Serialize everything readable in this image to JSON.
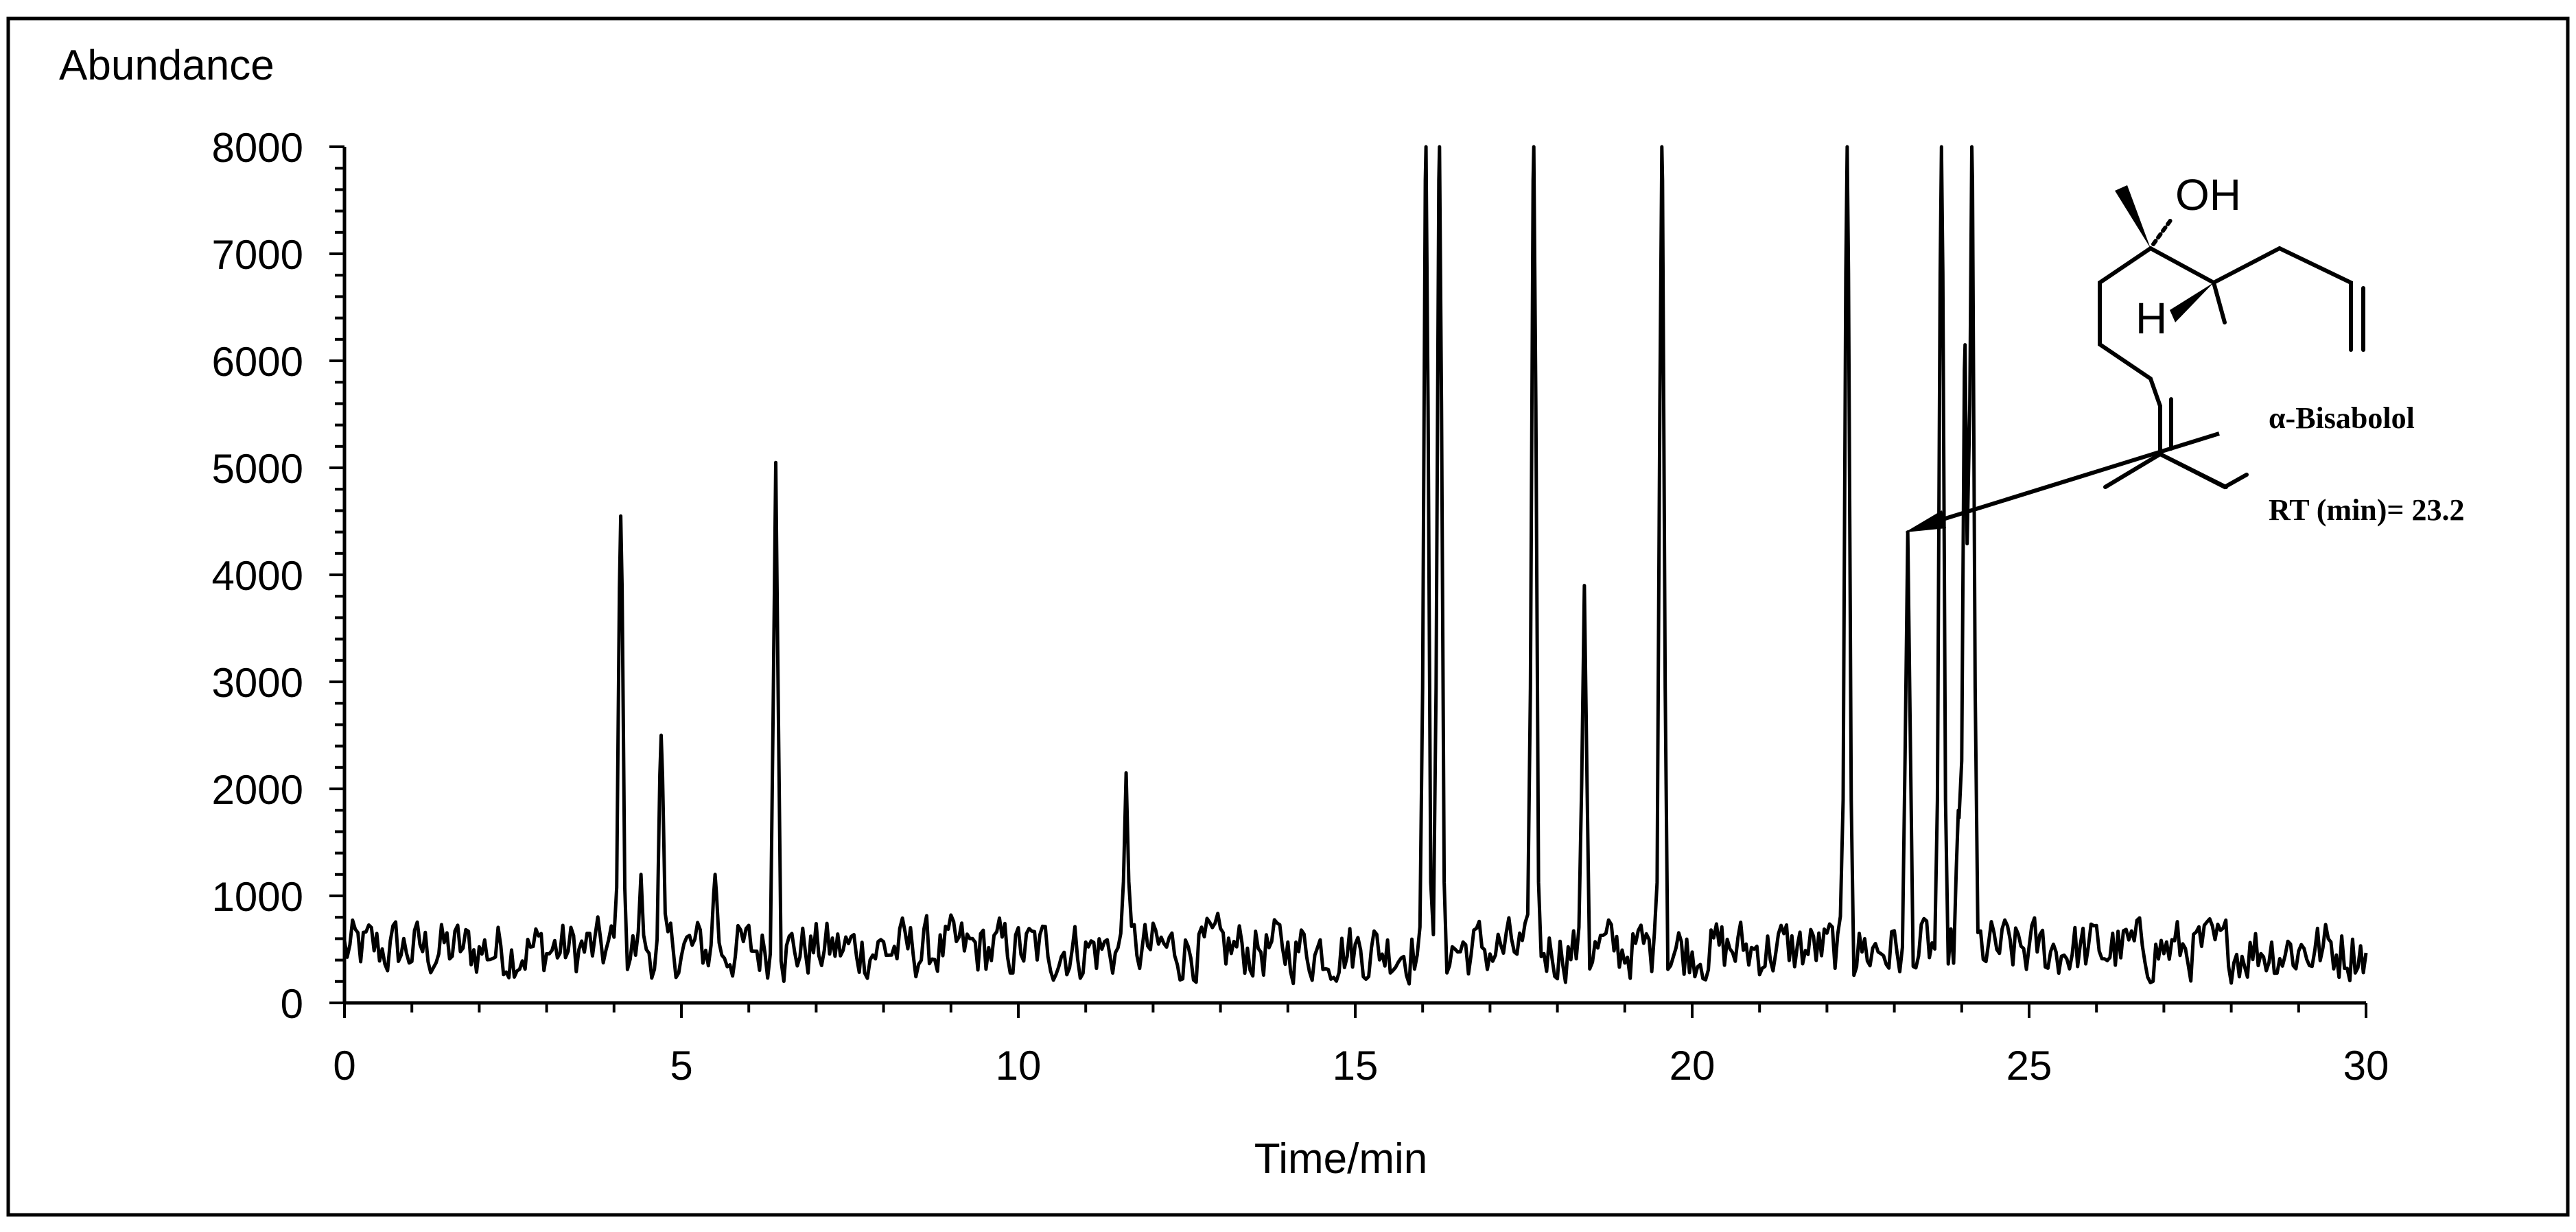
{
  "chart_data": {
    "type": "line",
    "ylabel": "Abundance",
    "xlabel": "Time/min",
    "xlim": [
      0,
      30
    ],
    "ylim": [
      0,
      8000
    ],
    "x_ticks": [
      0,
      5,
      10,
      15,
      20,
      25,
      30
    ],
    "y_ticks": [
      0,
      1000,
      2000,
      3000,
      4000,
      5000,
      6000,
      7000,
      8000
    ],
    "grid": false,
    "legend": "none",
    "baseline": {
      "min": 100,
      "max": 900,
      "x_start": 0,
      "x_end": 30
    },
    "peaks": [
      {
        "x": 4.1,
        "y": 4550
      },
      {
        "x": 4.4,
        "y": 1200
      },
      {
        "x": 4.7,
        "y": 2500
      },
      {
        "x": 5.5,
        "y": 1200
      },
      {
        "x": 6.4,
        "y": 5050
      },
      {
        "x": 11.6,
        "y": 2150
      },
      {
        "x": 16.05,
        "y": 8000
      },
      {
        "x": 16.25,
        "y": 8000
      },
      {
        "x": 17.65,
        "y": 8000
      },
      {
        "x": 18.4,
        "y": 3900
      },
      {
        "x": 19.55,
        "y": 8000
      },
      {
        "x": 22.3,
        "y": 8000
      },
      {
        "x": 23.2,
        "y": 4400
      },
      {
        "x": 23.7,
        "y": 8000
      },
      {
        "x": 23.95,
        "y": 1800
      },
      {
        "x": 24.05,
        "y": 6150
      },
      {
        "x": 24.15,
        "y": 8000
      }
    ],
    "annotation": {
      "compound": "α-Bisabolol",
      "rt_text": "RT (min)= 23.2",
      "target_x": 23.2,
      "target_y": 4400,
      "structure_labels": {
        "hydroxyl": "OH",
        "hydrogen": "H"
      }
    }
  },
  "colors": {
    "line": "#000000",
    "frame": "#000000",
    "background": "#ffffff"
  }
}
